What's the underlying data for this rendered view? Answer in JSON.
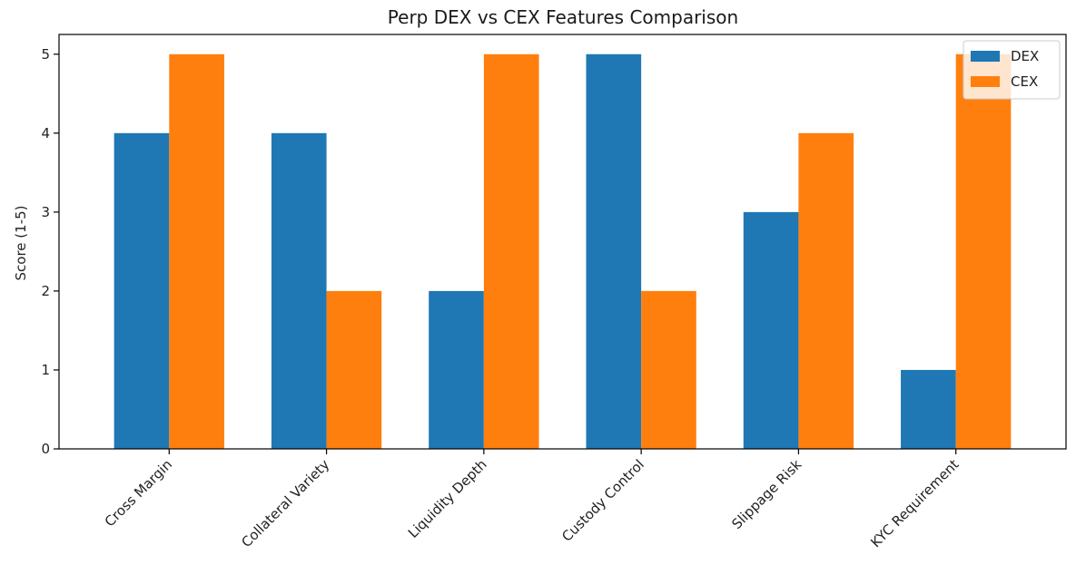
{
  "chart_data": {
    "type": "bar",
    "title": "Perp DEX vs CEX Features Comparison",
    "xlabel": "",
    "ylabel": "Score (1-5)",
    "ylim": [
      0,
      5.25
    ],
    "yticks": [
      0,
      1,
      2,
      3,
      4,
      5
    ],
    "grid": false,
    "legend_position": "top-right",
    "categories": [
      "Cross Margin",
      "Collateral Variety",
      "Liquidity Depth",
      "Custody Control",
      "Slippage Risk",
      "KYC Requirement"
    ],
    "series": [
      {
        "name": "DEX",
        "color": "#1f77b4",
        "values": [
          4,
          4,
          2,
          5,
          3,
          1
        ]
      },
      {
        "name": "CEX",
        "color": "#ff7f0e",
        "values": [
          5,
          2,
          5,
          2,
          4,
          5
        ]
      }
    ]
  }
}
